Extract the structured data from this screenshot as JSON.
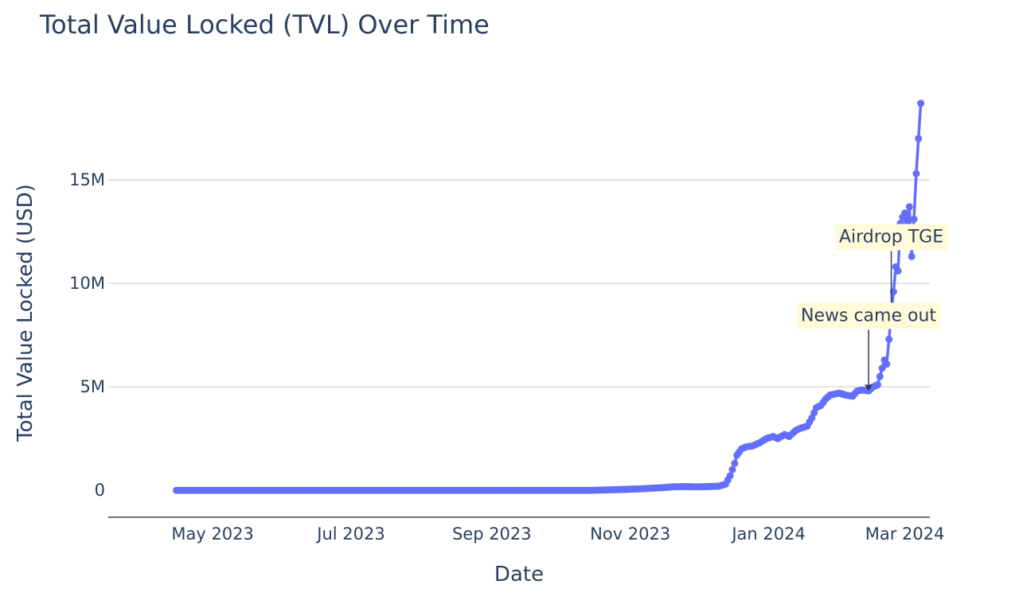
{
  "chart_data": {
    "type": "line",
    "title": "Total Value Locked (TVL) Over Time",
    "xlabel": "Date",
    "ylabel": "Total Value Locked (USD)",
    "x_range": [
      "2023-03-16",
      "2024-03-12"
    ],
    "ylim": [
      -1300000,
      20000000
    ],
    "x_ticks": [
      {
        "date": "2023-05-01",
        "label": "May 2023"
      },
      {
        "date": "2023-07-01",
        "label": "Jul 2023"
      },
      {
        "date": "2023-09-01",
        "label": "Sep 2023"
      },
      {
        "date": "2023-11-01",
        "label": "Nov 2023"
      },
      {
        "date": "2024-01-01",
        "label": "Jan 2024"
      },
      {
        "date": "2024-03-01",
        "label": "Mar 2024"
      }
    ],
    "y_ticks": [
      {
        "value": 0,
        "label": "0"
      },
      {
        "value": 5000000,
        "label": "5M"
      },
      {
        "value": 10000000,
        "label": "10M"
      },
      {
        "value": 15000000,
        "label": "15M"
      }
    ],
    "grid": true,
    "line_color": "#636efa",
    "series": [
      {
        "points": [
          [
            "2023-04-15",
            0
          ],
          [
            "2023-10-15",
            0
          ],
          [
            "2023-10-28",
            40000
          ],
          [
            "2023-11-05",
            70000
          ],
          [
            "2023-11-10",
            100000
          ],
          [
            "2023-11-15",
            130000
          ],
          [
            "2023-11-20",
            170000
          ],
          [
            "2023-11-25",
            180000
          ],
          [
            "2023-11-30",
            170000
          ],
          [
            "2023-12-05",
            180000
          ],
          [
            "2023-12-10",
            200000
          ],
          [
            "2023-12-13",
            300000
          ],
          [
            "2023-12-15",
            700000
          ],
          [
            "2023-12-17",
            1300000
          ],
          [
            "2023-12-18",
            1700000
          ],
          [
            "2023-12-20",
            2000000
          ],
          [
            "2023-12-22",
            2100000
          ],
          [
            "2023-12-25",
            2150000
          ],
          [
            "2023-12-28",
            2300000
          ],
          [
            "2023-12-31",
            2500000
          ],
          [
            "2024-01-03",
            2600000
          ],
          [
            "2024-01-05",
            2500000
          ],
          [
            "2024-01-08",
            2700000
          ],
          [
            "2024-01-10",
            2600000
          ],
          [
            "2024-01-13",
            2900000
          ],
          [
            "2024-01-15",
            3000000
          ],
          [
            "2024-01-18",
            3100000
          ],
          [
            "2024-01-20",
            3500000
          ],
          [
            "2024-01-22",
            4000000
          ],
          [
            "2024-01-24",
            4100000
          ],
          [
            "2024-01-26",
            4400000
          ],
          [
            "2024-01-28",
            4600000
          ],
          [
            "2024-02-01",
            4700000
          ],
          [
            "2024-02-04",
            4600000
          ],
          [
            "2024-02-07",
            4550000
          ],
          [
            "2024-02-09",
            4800000
          ],
          [
            "2024-02-11",
            4850000
          ],
          [
            "2024-02-14",
            4800000
          ],
          [
            "2024-02-16",
            5000000
          ],
          [
            "2024-02-18",
            5100000
          ],
          [
            "2024-02-19",
            5500000
          ],
          [
            "2024-02-20",
            5900000
          ],
          [
            "2024-02-21",
            6300000
          ],
          [
            "2024-02-22",
            6100000
          ],
          [
            "2024-02-23",
            7300000
          ],
          [
            "2024-02-24",
            8500000
          ],
          [
            "2024-02-25",
            9600000
          ],
          [
            "2024-02-26",
            10800000
          ],
          [
            "2024-02-27",
            10600000
          ],
          [
            "2024-02-28",
            12900000
          ],
          [
            "2024-02-29",
            13200000
          ],
          [
            "2024-03-01",
            13400000
          ],
          [
            "2024-03-02",
            13000000
          ],
          [
            "2024-03-03",
            13700000
          ],
          [
            "2024-03-04",
            11300000
          ],
          [
            "2024-03-05",
            13100000
          ],
          [
            "2024-03-06",
            15300000
          ],
          [
            "2024-03-07",
            17000000
          ],
          [
            "2024-03-08",
            18700000
          ]
        ]
      }
    ],
    "annotations": [
      {
        "text": "Airdrop TGE",
        "date": "2024-02-24",
        "value": 8600000
      },
      {
        "text": "News came out",
        "date": "2024-02-14",
        "value": 4800000
      }
    ]
  }
}
